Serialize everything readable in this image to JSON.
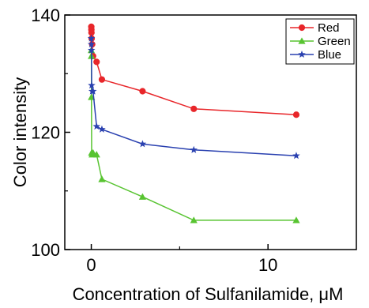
{
  "chart_data": {
    "type": "line",
    "title": "",
    "xlabel": "Concentration of Sulfanilamide, μM",
    "ylabel": "Color intensity",
    "xlim": [
      -1.5,
      15
    ],
    "ylim": [
      100,
      140
    ],
    "xticks": [
      0,
      10
    ],
    "yticks": [
      100,
      120,
      140
    ],
    "grid": false,
    "legend": "top-right",
    "series": [
      {
        "name": "Red",
        "color": "#e8262a",
        "marker": "circle",
        "x": [
          0,
          0.005,
          0.01,
          0.02,
          0.05,
          0.1,
          0.3,
          0.6,
          2.9,
          5.8,
          11.6
        ],
        "y": [
          138,
          137.5,
          137,
          136,
          135,
          133,
          132,
          129,
          127,
          124,
          123
        ]
      },
      {
        "name": "Green",
        "color": "#58c431",
        "marker": "triangle",
        "x": [
          0,
          0.005,
          0.01,
          0.02,
          0.05,
          0.1,
          0.3,
          0.6,
          2.9,
          5.8,
          11.6
        ],
        "y": [
          134,
          133,
          126,
          116.5,
          116.2,
          116.5,
          116.2,
          112,
          109,
          105,
          105
        ]
      },
      {
        "name": "Blue",
        "color": "#2a41b0",
        "marker": "star",
        "x": [
          0,
          0.005,
          0.01,
          0.02,
          0.05,
          0.1,
          0.3,
          0.6,
          2.9,
          5.8,
          11.6
        ],
        "y": [
          136,
          135,
          134,
          128,
          127,
          127,
          121,
          120.5,
          118,
          117,
          116
        ]
      }
    ]
  }
}
